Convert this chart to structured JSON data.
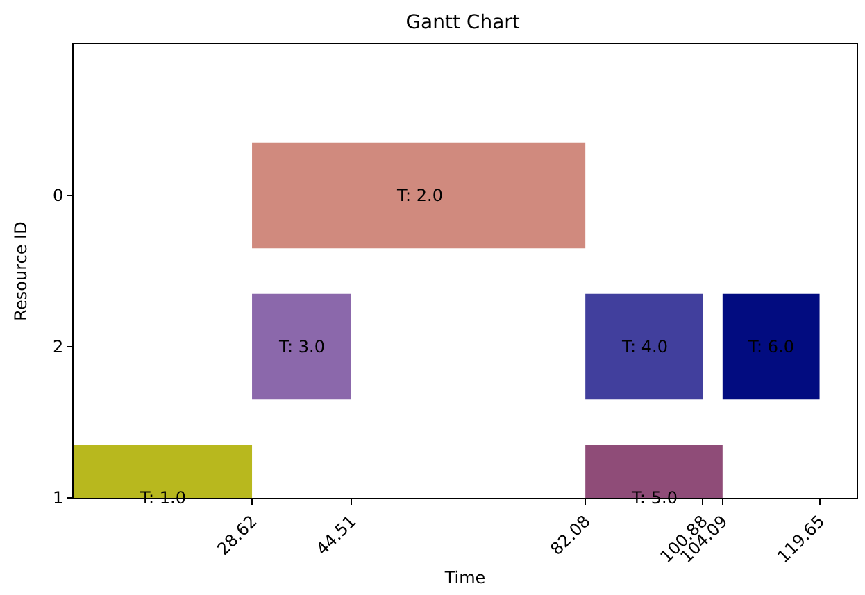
{
  "chart_data": {
    "type": "bar",
    "orientation": "horizontal",
    "title": "Gantt Chart",
    "xlabel": "Time",
    "ylabel": "Resource ID",
    "categories": [
      "0",
      "2",
      "1"
    ],
    "xlim": [
      0,
      125.6
    ],
    "xticks": [
      28.62,
      44.51,
      82.08,
      100.88,
      104.09,
      119.65
    ],
    "grid": false,
    "legend": false,
    "series": [
      {
        "name": "T: 1.0",
        "color": "#b8b81e",
        "values": [
          null,
          null,
          28.62
        ],
        "base": [
          null,
          null,
          0
        ]
      },
      {
        "name": "T: 2.0",
        "color": "#d08a7e",
        "values": [
          53.46,
          null,
          null
        ],
        "base": [
          28.62,
          null,
          null
        ]
      },
      {
        "name": "T: 3.0",
        "color": "#8b68ab",
        "values": [
          null,
          15.89,
          null
        ],
        "base": [
          null,
          28.62,
          null
        ]
      },
      {
        "name": "T: 4.0",
        "color": "#413f9d",
        "values": [
          null,
          18.8,
          null
        ],
        "base": [
          null,
          82.08,
          null
        ]
      },
      {
        "name": "T: 5.0",
        "color": "#8f4c78",
        "values": [
          null,
          null,
          22.01
        ],
        "base": [
          null,
          null,
          82.08
        ]
      },
      {
        "name": "T: 6.0",
        "color": "#020c80",
        "values": [
          null,
          15.56,
          null
        ],
        "base": [
          null,
          104.09,
          null
        ]
      }
    ]
  }
}
